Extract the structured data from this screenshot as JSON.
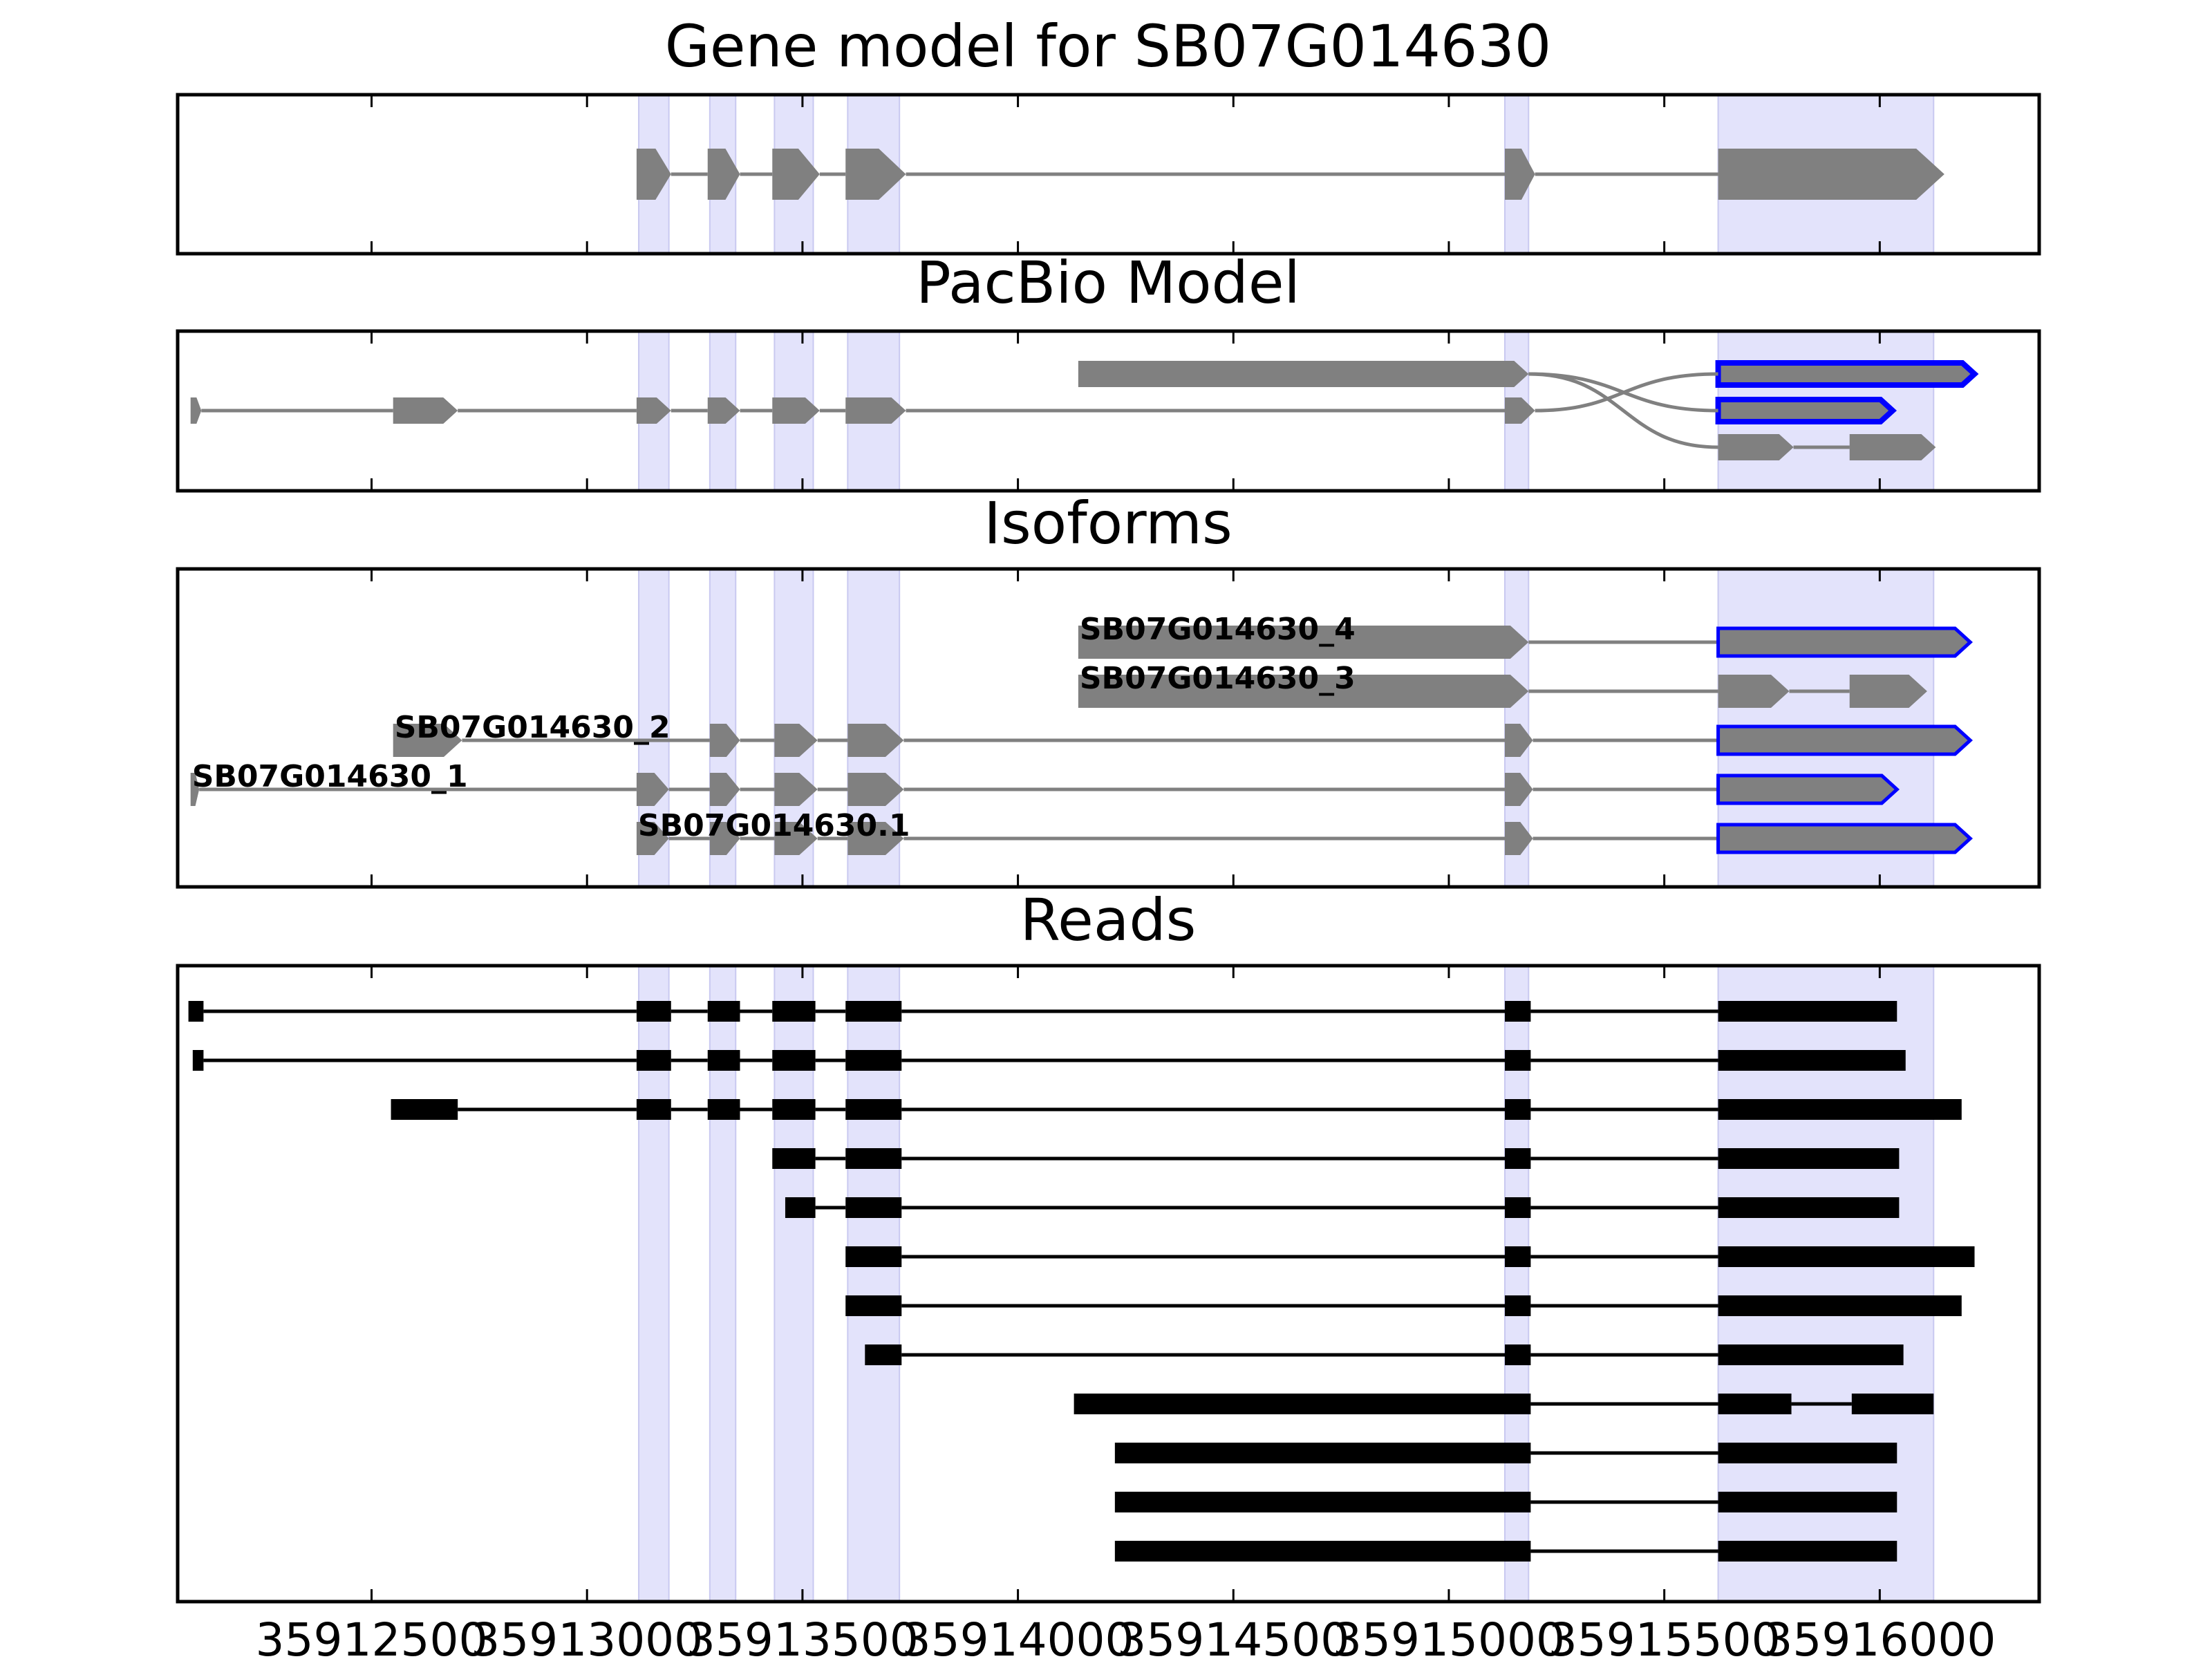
{
  "chart_data": {
    "type": "gene-track",
    "xlim": [
      35912050,
      35916370
    ],
    "xticks": [
      35912500,
      35913000,
      35913500,
      35914000,
      35914500,
      35915000,
      35915500,
      35916000
    ],
    "xtick_labels": [
      "35912500",
      "35913000",
      "35913500",
      "35914000",
      "35914500",
      "35915000",
      "35915500",
      "35916000"
    ],
    "exon_shading": [
      [
        35913120,
        35913190
      ],
      [
        35913285,
        35913345
      ],
      [
        35913435,
        35913525
      ],
      [
        35913605,
        35913725
      ],
      [
        35915130,
        35915185
      ],
      [
        35915625,
        35916125
      ]
    ],
    "colors": {
      "shade": "#e3e3fb",
      "feature": "#808080",
      "highlight": "#0000ff",
      "read": "#000000",
      "axis": "#000000"
    },
    "panels": [
      {
        "id": "gene-model",
        "title": "Gene model for SB07G014630",
        "rows": 1,
        "tracks": [
          {
            "row": 0,
            "label": "",
            "style": "gray",
            "exons": [
              [
                35913115,
                35913195
              ],
              [
                35913280,
                35913355
              ],
              [
                35913430,
                35913540
              ],
              [
                35913600,
                35913740
              ],
              [
                35915130,
                35915200
              ],
              [
                35915625,
                35916150
              ]
            ]
          }
        ]
      },
      {
        "id": "pacbio-model",
        "title": "PacBio Model",
        "rows": 3,
        "splice_graph": true,
        "tracks": [
          {
            "row": 0,
            "label": "",
            "style": "gray",
            "exons": [
              [
                35914140,
                35915185
              ]
            ],
            "connect": "end-cross-1"
          },
          {
            "row": 1,
            "label": "",
            "style": "gray",
            "exons": [
              [
                35912080,
                35912105
              ],
              [
                35912550,
                35912700
              ],
              [
                35913115,
                35913195
              ],
              [
                35913280,
                35913355
              ],
              [
                35913430,
                35913540
              ],
              [
                35913600,
                35913740
              ],
              [
                35915130,
                35915200
              ]
            ]
          },
          {
            "row": 2,
            "label": "",
            "style": "gray",
            "exons": [
              [
                35915625,
                35915800
              ],
              [
                35915930,
                35916130
              ]
            ]
          },
          {
            "row": 0,
            "label": "",
            "style": "blue",
            "exons": [
              [
                35915625,
                35916220
              ]
            ]
          },
          {
            "row": 1,
            "label": "",
            "style": "blue",
            "exons": [
              [
                35915625,
                35916030
              ]
            ]
          }
        ]
      },
      {
        "id": "isoforms",
        "title": "Isoforms",
        "rows": 5,
        "tracks": [
          {
            "row": 0,
            "label": "SB07G014630_4",
            "style": "gray+blue",
            "exons": [
              [
                35914140,
                35915185
              ],
              [
                35915625,
                35916210
              ]
            ]
          },
          {
            "row": 1,
            "label": "SB07G014630_3",
            "style": "gray",
            "exons": [
              [
                35914140,
                35915185
              ],
              [
                35915625,
                35915790
              ],
              [
                35915930,
                35916110
              ]
            ]
          },
          {
            "row": 2,
            "label": "SB07G014630_2",
            "style": "gray+blue",
            "exons": [
              [
                35912550,
                35912710
              ],
              [
                35913285,
                35913355
              ],
              [
                35913435,
                35913535
              ],
              [
                35913605,
                35913735
              ],
              [
                35915130,
                35915195
              ],
              [
                35915625,
                35916210
              ]
            ]
          },
          {
            "row": 3,
            "label": "SB07G014630_1",
            "style": "gray+blue",
            "exons": [
              [
                35912080,
                35912100
              ],
              [
                35913115,
                35913190
              ],
              [
                35913285,
                35913355
              ],
              [
                35913435,
                35913535
              ],
              [
                35913605,
                35913735
              ],
              [
                35915130,
                35915195
              ],
              [
                35915625,
                35916040
              ]
            ]
          },
          {
            "row": 4,
            "label": "SB07G014630.1",
            "style": "gray+blue",
            "exons": [
              [
                35913115,
                35913190
              ],
              [
                35913285,
                35913355
              ],
              [
                35913435,
                35913535
              ],
              [
                35913605,
                35913735
              ],
              [
                35915130,
                35915195
              ],
              [
                35915625,
                35916210
              ]
            ]
          }
        ]
      },
      {
        "id": "reads",
        "title": "Reads",
        "rows": 12,
        "tracks": [
          {
            "row": 0,
            "label": "",
            "style": "black",
            "exons": [
              [
                35912075,
                35912110
              ],
              [
                35913115,
                35913195
              ],
              [
                35913280,
                35913355
              ],
              [
                35913430,
                35913530
              ],
              [
                35913600,
                35913730
              ],
              [
                35915130,
                35915190
              ],
              [
                35915625,
                35916040
              ]
            ]
          },
          {
            "row": 1,
            "label": "",
            "style": "black",
            "exons": [
              [
                35912085,
                35912110
              ],
              [
                35913115,
                35913195
              ],
              [
                35913280,
                35913355
              ],
              [
                35913430,
                35913530
              ],
              [
                35913600,
                35913730
              ],
              [
                35915130,
                35915190
              ],
              [
                35915625,
                35916060
              ]
            ]
          },
          {
            "row": 2,
            "label": "",
            "style": "black",
            "exons": [
              [
                35912545,
                35912700
              ],
              [
                35913115,
                35913195
              ],
              [
                35913280,
                35913355
              ],
              [
                35913430,
                35913530
              ],
              [
                35913600,
                35913730
              ],
              [
                35915130,
                35915190
              ],
              [
                35915625,
                35916190
              ]
            ]
          },
          {
            "row": 3,
            "label": "",
            "style": "black",
            "exons": [
              [
                35913430,
                35913530
              ],
              [
                35913600,
                35913730
              ],
              [
                35915130,
                35915190
              ],
              [
                35915625,
                35916045
              ]
            ]
          },
          {
            "row": 4,
            "label": "",
            "style": "black",
            "exons": [
              [
                35913460,
                35913530
              ],
              [
                35913600,
                35913730
              ],
              [
                35915130,
                35915190
              ],
              [
                35915625,
                35916045
              ]
            ]
          },
          {
            "row": 5,
            "label": "",
            "style": "black",
            "exons": [
              [
                35913600,
                35913730
              ],
              [
                35915130,
                35915190
              ],
              [
                35915625,
                35916220
              ]
            ]
          },
          {
            "row": 6,
            "label": "",
            "style": "black",
            "exons": [
              [
                35913600,
                35913730
              ],
              [
                35915130,
                35915190
              ],
              [
                35915625,
                35916190
              ]
            ]
          },
          {
            "row": 7,
            "label": "",
            "style": "black",
            "exons": [
              [
                35913645,
                35913730
              ],
              [
                35915130,
                35915190
              ],
              [
                35915625,
                35916055
              ]
            ]
          },
          {
            "row": 8,
            "label": "",
            "style": "black",
            "exons": [
              [
                35914130,
                35915190
              ],
              [
                35915625,
                35915795
              ],
              [
                35915935,
                35916125
              ]
            ]
          },
          {
            "row": 9,
            "label": "",
            "style": "black",
            "exons": [
              [
                35914225,
                35915190
              ],
              [
                35915625,
                35916040
              ]
            ]
          },
          {
            "row": 10,
            "label": "",
            "style": "black",
            "exons": [
              [
                35914225,
                35915190
              ],
              [
                35915625,
                35916040
              ]
            ]
          },
          {
            "row": 11,
            "label": "",
            "style": "black",
            "exons": [
              [
                35914225,
                35915190
              ],
              [
                35915625,
                35916040
              ]
            ]
          }
        ]
      }
    ]
  }
}
